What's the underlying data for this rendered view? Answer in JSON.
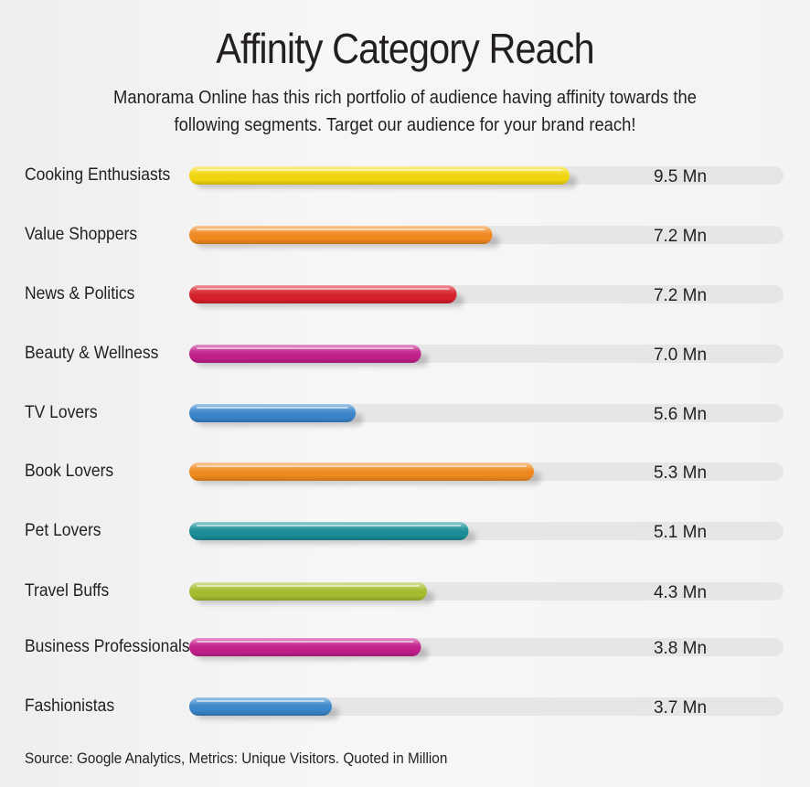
{
  "title": "Affinity Category Reach",
  "subtitle": "Manorama Online has this rich portfolio of audience having affinity towards the following segments. Target our audience for your brand reach!",
  "source": "Source: Google Analytics, Metrics: Unique Visitors. Quoted in Million",
  "chart_data": {
    "type": "bar",
    "orientation": "horizontal",
    "title": "Affinity Category Reach",
    "unit_suffix": " Mn",
    "categories": [
      "Cooking Enthusiasts",
      "Value Shoppers",
      "News & Politics",
      "Beauty & Wellness",
      "TV Lovers",
      "Book Lovers",
      "Pet Lovers",
      "Travel Buffs",
      "Business Professionals",
      "Fashionistas"
    ],
    "values": [
      9.5,
      7.2,
      7.2,
      7.0,
      5.6,
      5.3,
      5.1,
      4.3,
      3.8,
      3.7
    ],
    "value_labels": [
      "9.5 Mn",
      "7.2 Mn",
      "7.2 Mn",
      "7.0 Mn",
      "5.6 Mn",
      "5.3 Mn",
      "5.1 Mn",
      "4.3 Mn",
      "3.8 Mn",
      "3.7 Mn"
    ],
    "bar_fill_fraction": [
      0.64,
      0.51,
      0.45,
      0.39,
      0.28,
      0.58,
      0.47,
      0.4,
      0.39,
      0.24
    ],
    "colors": [
      "#f5d90f",
      "#f28a1f",
      "#d8212b",
      "#c41f8c",
      "#3a86cc",
      "#f28a1f",
      "#1a8f99",
      "#a6be2f",
      "#c41f8c",
      "#3a86cc"
    ],
    "track_color": "#e6e6e7",
    "grid": false,
    "legend": "none"
  }
}
